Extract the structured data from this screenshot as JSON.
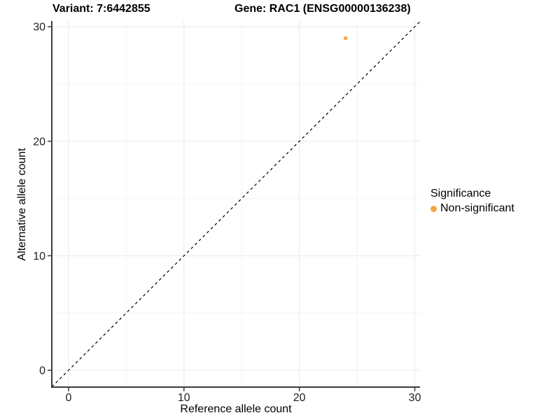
{
  "titles": {
    "variant": "Variant: 7:6442855",
    "gene": "Gene: RAC1 (ENSG00000136238)"
  },
  "chart_data": {
    "type": "scatter",
    "title_left": "Variant: 7:6442855",
    "title_right": "Gene: RAC1 (ENSG00000136238)",
    "xlabel": "Reference allele count",
    "ylabel": "Alternative allele count",
    "xlim": [
      -1.45,
      30.45
    ],
    "ylim": [
      -1.47,
      30.5
    ],
    "x_ticks": [
      0,
      10,
      20,
      30
    ],
    "y_ticks": [
      0,
      10,
      20,
      30
    ],
    "x_minor_ticks": [
      5,
      15,
      25
    ],
    "y_minor_ticks": [
      5,
      15,
      25
    ],
    "grid": true,
    "reference_line": {
      "slope": 1,
      "intercept": 0,
      "style": "dashed",
      "color": "#000000"
    },
    "series": [
      {
        "name": "Non-significant",
        "color": "#F9A242",
        "points": [
          {
            "x": 24,
            "y": 29
          }
        ]
      }
    ],
    "legend": {
      "title": "Significance",
      "position": "right",
      "entries": [
        {
          "label": "Non-significant",
          "color": "#F9A242"
        }
      ]
    }
  },
  "style_colors": {
    "major_grid": "#E8E8E8",
    "minor_grid": "#F3F3F3",
    "axis_line": "#3C3C3C",
    "tick_label": "#1F1F1F",
    "point": "#F9A242"
  }
}
